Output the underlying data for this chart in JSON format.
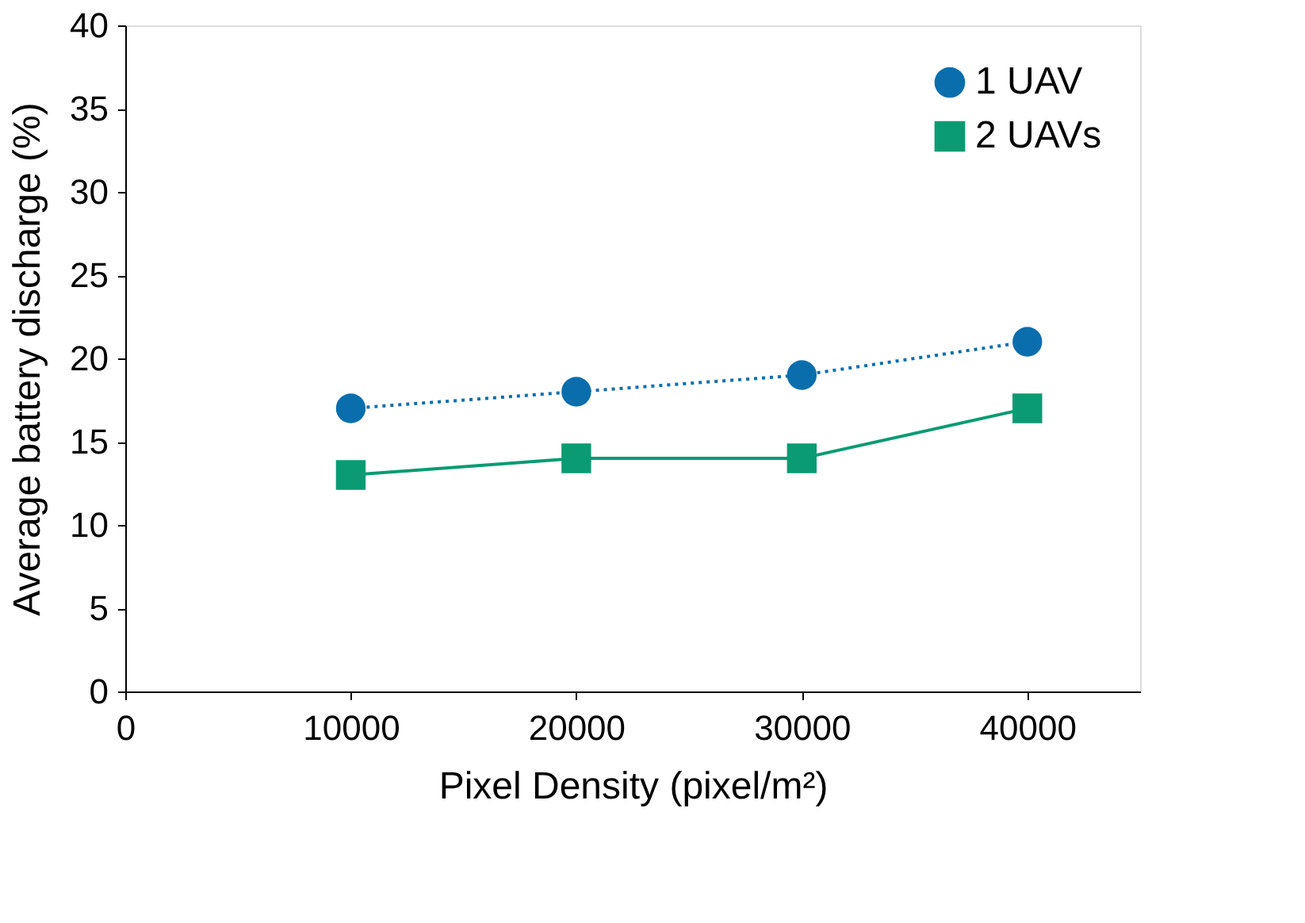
{
  "chart_data": {
    "type": "line",
    "xlabel": "Pixel Density (pixel/m²)",
    "ylabel": "Average battery discharge (%)",
    "x": [
      10000,
      20000,
      30000,
      40000
    ],
    "series": [
      {
        "name": "1 UAV",
        "color": "#0a6ead",
        "values": [
          17,
          18,
          19,
          21
        ],
        "marker": "circle",
        "line_style": "dotted"
      },
      {
        "name": "2 UAVs",
        "color": "#0a9b73",
        "values": [
          13,
          14,
          14,
          17
        ],
        "marker": "square",
        "line_style": "solid"
      }
    ],
    "xlim": [
      0,
      45000
    ],
    "xticks": [
      0,
      10000,
      20000,
      30000,
      40000
    ],
    "ylim": [
      0,
      40
    ],
    "yticks": [
      0,
      5,
      10,
      15,
      20,
      25,
      30,
      35,
      40
    ],
    "grid": false,
    "legend": "top right"
  }
}
